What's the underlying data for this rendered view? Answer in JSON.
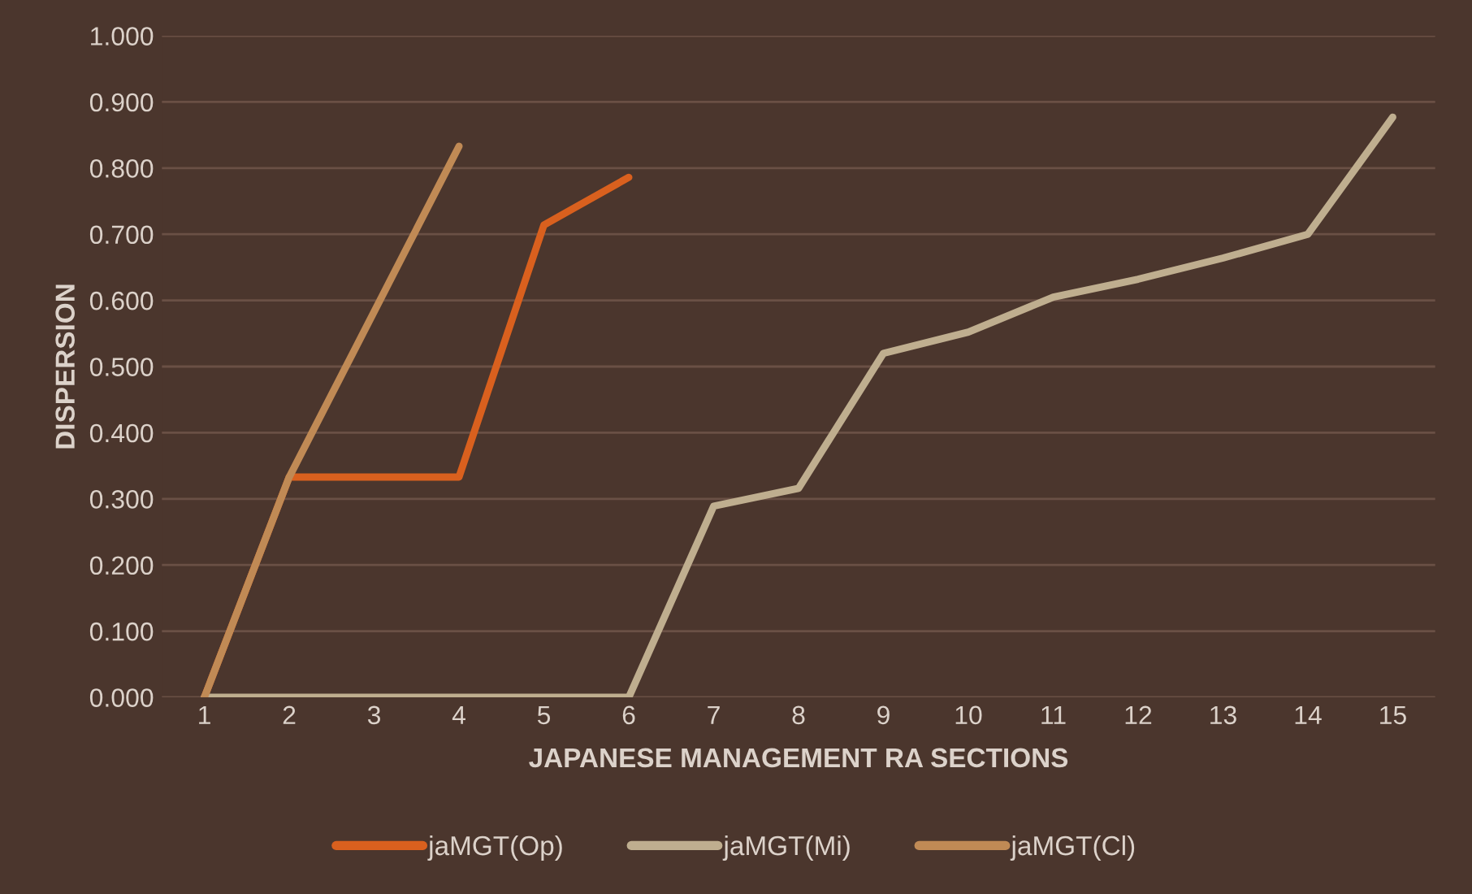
{
  "chart_data": {
    "type": "line",
    "xlabel": "JAPANESE MANAGEMENT RA SECTIONS",
    "ylabel": "DISPERSION",
    "categories": [
      "1",
      "2",
      "3",
      "4",
      "5",
      "6",
      "7",
      "8",
      "9",
      "10",
      "11",
      "12",
      "13",
      "14",
      "15"
    ],
    "series": [
      {
        "name": "jaMGT(Op)",
        "color": "#d9601e",
        "values": [
          0,
          0.333,
          0.333,
          0.333,
          0.714,
          0.786,
          null,
          null,
          null,
          null,
          null,
          null,
          null,
          null,
          null
        ]
      },
      {
        "name": "jaMGT(Mi)",
        "color": "#bfae8f",
        "values": [
          0,
          0,
          0,
          0,
          0,
          0,
          0.289,
          0.316,
          0.52,
          0.552,
          0.605,
          0.632,
          0.664,
          0.7,
          0.877
        ]
      },
      {
        "name": "jaMGT(Cl)",
        "color": "#c08a55",
        "values": [
          0,
          0.333,
          0.583,
          0.833,
          null,
          null,
          null,
          null,
          null,
          null,
          null,
          null,
          null,
          null,
          null
        ]
      }
    ],
    "ylim": [
      0,
      1.0
    ],
    "yticks": [
      {
        "value": 0,
        "label": "0.000"
      },
      {
        "value": 0.1,
        "label": "0.100"
      },
      {
        "value": 0.2,
        "label": "0.200"
      },
      {
        "value": 0.3,
        "label": "0.300"
      },
      {
        "value": 0.4,
        "label": "0.400"
      },
      {
        "value": 0.5,
        "label": "0.500"
      },
      {
        "value": 0.6,
        "label": "0.600"
      },
      {
        "value": 0.7,
        "label": "0.700"
      },
      {
        "value": 0.8,
        "label": "0.800"
      },
      {
        "value": 0.9,
        "label": "0.900"
      },
      {
        "value": 1.0,
        "label": "1.000"
      }
    ],
    "grid": "y",
    "legend": "bottom",
    "marker": "none",
    "line_style": "solid"
  }
}
